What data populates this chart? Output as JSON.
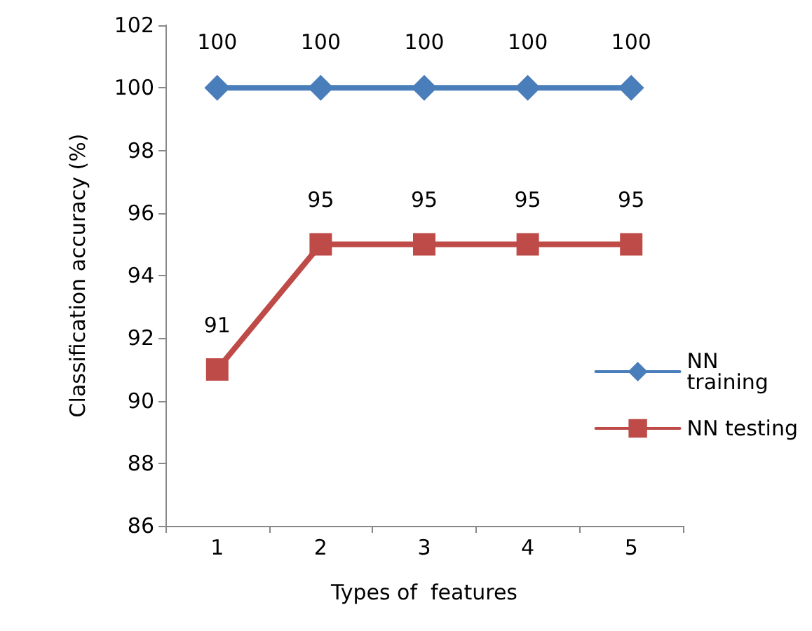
{
  "chart_data": {
    "type": "line",
    "xlabel": "Types of  features",
    "ylabel": "Classification accuracy (%)",
    "categories": [
      "1",
      "2",
      "3",
      "4",
      "5"
    ],
    "series": [
      {
        "name": "NN training",
        "color": "#4a7ebb",
        "marker": "diamond",
        "values": [
          100,
          100,
          100,
          100,
          100
        ]
      },
      {
        "name": "NN testing",
        "color": "#be4b48",
        "marker": "square",
        "values": [
          91,
          95,
          95,
          95,
          95
        ]
      }
    ],
    "ylim": [
      86,
      102
    ],
    "yticks": [
      86,
      88,
      90,
      92,
      94,
      96,
      98,
      100,
      102
    ],
    "grid": false,
    "legend": "right",
    "data_labels": true
  }
}
